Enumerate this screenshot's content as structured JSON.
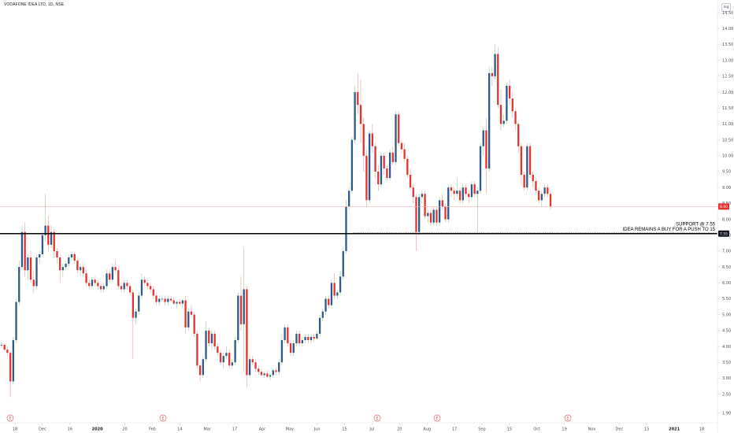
{
  "header": {
    "title": "VODAFONE IDEA LTD, 1D, NSE"
  },
  "log_button": "log",
  "colors": {
    "up": "#2a5b8a",
    "down": "#e5322d",
    "support": "#000000",
    "last_price_line": "#f0b0b0",
    "last_price_tag": "#e5322d",
    "event_marker": "#e06666",
    "axis_text": "#4a4e58"
  },
  "annotations": [
    {
      "text": "SUPPORT @ 7.55"
    },
    {
      "text": "IDEA REMAINS A BUY FOR A PUSH TO 15"
    }
  ],
  "price_tags": {
    "last": "8.40",
    "support": "7.55"
  },
  "event_marker_label": "E",
  "chart_data": {
    "type": "candlestick",
    "title": "VODAFONE IDEA LTD, 1D, NSE",
    "y_axis_ticks": [
      "1.90",
      "2.50",
      "3.00",
      "3.50",
      "4.00",
      "4.50",
      "5.00",
      "5.50",
      "6.00",
      "6.50",
      "7.00",
      "7.50",
      "8.00",
      "8.50",
      "9.00",
      "9.50",
      "10.00",
      "10.50",
      "11.00",
      "11.50",
      "12.00",
      "12.50",
      "13.00",
      "13.50",
      "14.00",
      "14.50"
    ],
    "x_axis_ticks": [
      "18",
      "Dec",
      "16",
      "2020",
      "20",
      "Feb",
      "14",
      "Mar",
      "17",
      "Apr",
      "May",
      "Jun",
      "15",
      "Jul",
      "20",
      "Aug",
      "17",
      "Sep",
      "15",
      "Oct",
      "19",
      "Nov",
      "Dec",
      "15",
      "2021",
      "18"
    ],
    "ylim": [
      1.6,
      14.8
    ],
    "support_level": 7.55,
    "last_price": 8.4,
    "event_markers": [
      "Nov",
      "Feb",
      "Jul",
      "Aug",
      "Nov"
    ],
    "series": [
      {
        "name": "",
        "points": [
          [
            4.05,
            4.15,
            3.95,
            4.05
          ],
          [
            4.05,
            4.1,
            3.85,
            3.9
          ],
          [
            3.9,
            4.0,
            3.7,
            3.8
          ],
          [
            3.8,
            3.85,
            2.4,
            2.9
          ],
          [
            2.9,
            4.3,
            2.8,
            4.2
          ],
          [
            4.2,
            5.5,
            4.1,
            5.4
          ],
          [
            5.4,
            6.7,
            5.3,
            6.5
          ],
          [
            6.5,
            7.8,
            6.4,
            7.6
          ],
          [
            7.6,
            7.9,
            6.2,
            6.4
          ],
          [
            6.4,
            6.9,
            6.1,
            6.8
          ],
          [
            6.8,
            7.0,
            6.0,
            6.1
          ],
          [
            6.1,
            6.4,
            5.7,
            5.9
          ],
          [
            5.9,
            6.9,
            5.8,
            6.8
          ],
          [
            6.8,
            7.0,
            6.6,
            6.9
          ],
          [
            6.9,
            7.6,
            6.8,
            7.5
          ],
          [
            7.5,
            8.8,
            7.3,
            7.8
          ],
          [
            7.8,
            8.1,
            7.0,
            7.2
          ],
          [
            7.2,
            7.8,
            7.1,
            7.6
          ],
          [
            7.6,
            7.7,
            6.8,
            7.0
          ],
          [
            7.0,
            7.1,
            6.6,
            6.8
          ],
          [
            6.8,
            6.9,
            6.0,
            6.4
          ],
          [
            6.4,
            6.6,
            6.2,
            6.5
          ],
          [
            6.5,
            6.7,
            6.4,
            6.6
          ],
          [
            6.6,
            6.9,
            6.5,
            6.8
          ],
          [
            6.8,
            7.0,
            6.7,
            6.9
          ],
          [
            6.9,
            7.0,
            6.6,
            6.7
          ],
          [
            6.7,
            6.8,
            6.3,
            6.4
          ],
          [
            6.4,
            6.6,
            6.2,
            6.5
          ],
          [
            6.5,
            6.6,
            6.2,
            6.3
          ],
          [
            6.3,
            6.4,
            5.9,
            6.0
          ],
          [
            6.0,
            6.1,
            5.8,
            5.9
          ],
          [
            5.9,
            6.2,
            5.8,
            6.1
          ],
          [
            6.1,
            6.2,
            5.9,
            6.0
          ],
          [
            6.0,
            6.1,
            5.8,
            5.9
          ],
          [
            5.9,
            6.0,
            5.7,
            5.8
          ],
          [
            5.8,
            6.0,
            5.7,
            5.9
          ],
          [
            5.9,
            6.4,
            5.8,
            6.3
          ],
          [
            6.3,
            6.4,
            6.0,
            6.1
          ],
          [
            6.1,
            6.6,
            6.0,
            6.5
          ],
          [
            6.5,
            6.7,
            6.3,
            6.4
          ],
          [
            6.4,
            6.5,
            5.8,
            5.9
          ],
          [
            5.9,
            6.0,
            5.7,
            5.8
          ],
          [
            5.8,
            6.1,
            5.7,
            6.0
          ],
          [
            6.0,
            6.1,
            5.8,
            5.9
          ],
          [
            5.9,
            6.0,
            5.6,
            5.7
          ],
          [
            5.7,
            5.8,
            3.6,
            4.9
          ],
          [
            4.9,
            5.2,
            4.7,
            5.1
          ],
          [
            5.1,
            5.7,
            5.0,
            5.6
          ],
          [
            5.6,
            6.3,
            5.5,
            6.1
          ],
          [
            6.1,
            6.2,
            5.9,
            6.0
          ],
          [
            6.0,
            6.1,
            5.8,
            5.9
          ],
          [
            5.9,
            6.0,
            5.7,
            5.8
          ],
          [
            5.8,
            5.9,
            5.5,
            5.6
          ],
          [
            5.6,
            5.7,
            5.3,
            5.4
          ],
          [
            5.4,
            5.6,
            5.3,
            5.5
          ],
          [
            5.5,
            5.6,
            5.4,
            5.5
          ],
          [
            5.5,
            5.6,
            5.3,
            5.4
          ],
          [
            5.4,
            5.6,
            5.3,
            5.5
          ],
          [
            5.5,
            5.6,
            5.4,
            5.45
          ],
          [
            5.45,
            5.55,
            5.3,
            5.35
          ],
          [
            5.35,
            5.45,
            5.2,
            5.4
          ],
          [
            5.4,
            5.5,
            5.3,
            5.35
          ],
          [
            5.35,
            5.5,
            5.2,
            5.45
          ],
          [
            5.45,
            5.6,
            4.4,
            4.6
          ],
          [
            4.6,
            5.2,
            4.5,
            5.1
          ],
          [
            5.1,
            5.3,
            4.9,
            5.0
          ],
          [
            5.0,
            5.1,
            4.3,
            4.4
          ],
          [
            4.4,
            4.5,
            3.3,
            3.4
          ],
          [
            3.4,
            3.5,
            2.9,
            3.1
          ],
          [
            3.1,
            3.7,
            3.0,
            3.6
          ],
          [
            3.6,
            4.8,
            3.5,
            4.5
          ],
          [
            4.5,
            4.6,
            4.0,
            4.1
          ],
          [
            4.1,
            4.5,
            3.9,
            4.4
          ],
          [
            4.4,
            4.5,
            3.9,
            4.0
          ],
          [
            4.0,
            4.1,
            3.7,
            3.8
          ],
          [
            3.8,
            3.9,
            3.4,
            3.5
          ],
          [
            3.5,
            3.8,
            3.3,
            3.7
          ],
          [
            3.7,
            4.0,
            3.6,
            3.8
          ],
          [
            3.8,
            3.9,
            3.3,
            3.4
          ],
          [
            3.4,
            3.6,
            3.3,
            3.5
          ],
          [
            3.5,
            4.3,
            3.4,
            4.2
          ],
          [
            4.2,
            5.7,
            4.1,
            5.6
          ],
          [
            5.6,
            6.2,
            4.5,
            4.7
          ],
          [
            4.7,
            7.1,
            3.2,
            5.8
          ],
          [
            5.8,
            5.9,
            2.7,
            3.1
          ],
          [
            3.1,
            3.7,
            3.0,
            3.6
          ],
          [
            3.6,
            3.7,
            3.4,
            3.5
          ],
          [
            3.5,
            3.6,
            3.2,
            3.3
          ],
          [
            3.3,
            3.4,
            3.1,
            3.2
          ],
          [
            3.2,
            3.3,
            3.05,
            3.1
          ],
          [
            3.1,
            3.2,
            3.0,
            3.15
          ],
          [
            3.15,
            3.25,
            3.0,
            3.05
          ],
          [
            3.05,
            3.15,
            2.95,
            3.1
          ],
          [
            3.1,
            3.3,
            3.0,
            3.25
          ],
          [
            3.25,
            3.35,
            3.1,
            3.2
          ],
          [
            3.2,
            3.6,
            3.1,
            3.5
          ],
          [
            3.5,
            4.4,
            3.4,
            4.2
          ],
          [
            4.2,
            4.7,
            4.1,
            4.6
          ],
          [
            4.6,
            4.7,
            4.0,
            4.1
          ],
          [
            4.1,
            4.2,
            3.7,
            3.8
          ],
          [
            3.8,
            4.2,
            3.7,
            4.1
          ],
          [
            4.1,
            4.5,
            4.0,
            4.4
          ],
          [
            4.4,
            4.5,
            4.0,
            4.1
          ],
          [
            4.1,
            4.3,
            4.0,
            4.2
          ],
          [
            4.2,
            4.4,
            4.1,
            4.3
          ],
          [
            4.3,
            4.4,
            4.1,
            4.2
          ],
          [
            4.2,
            4.4,
            4.1,
            4.3
          ],
          [
            4.3,
            4.4,
            4.15,
            4.25
          ],
          [
            4.25,
            4.5,
            4.2,
            4.4
          ],
          [
            4.4,
            5.0,
            4.3,
            4.9
          ],
          [
            4.9,
            5.2,
            4.8,
            5.1
          ],
          [
            5.1,
            5.6,
            5.0,
            5.5
          ],
          [
            5.5,
            5.6,
            5.2,
            5.3
          ],
          [
            5.3,
            6.1,
            5.2,
            6.0
          ],
          [
            6.0,
            6.3,
            5.5,
            5.6
          ],
          [
            5.6,
            5.8,
            5.5,
            5.7
          ],
          [
            5.7,
            6.4,
            5.6,
            6.2
          ],
          [
            6.2,
            7.1,
            6.1,
            7.0
          ],
          [
            7.0,
            8.6,
            6.9,
            8.4
          ],
          [
            8.4,
            9.0,
            8.3,
            8.9
          ],
          [
            8.9,
            10.6,
            8.8,
            10.5
          ],
          [
            10.5,
            12.2,
            10.4,
            12.0
          ],
          [
            12.0,
            12.6,
            11.3,
            11.6
          ],
          [
            11.6,
            12.4,
            10.4,
            11.0
          ],
          [
            11.0,
            11.2,
            9.5,
            10.0
          ],
          [
            10.0,
            10.2,
            8.4,
            8.6
          ],
          [
            8.6,
            10.8,
            8.5,
            10.7
          ],
          [
            10.7,
            11.0,
            10.1,
            10.3
          ],
          [
            10.3,
            10.4,
            9.3,
            9.5
          ],
          [
            9.5,
            9.7,
            8.9,
            9.1
          ],
          [
            9.1,
            10.1,
            9.0,
            10.0
          ],
          [
            10.0,
            10.1,
            9.4,
            9.6
          ],
          [
            9.6,
            9.7,
            9.2,
            9.3
          ],
          [
            9.3,
            10.2,
            9.2,
            10.1
          ],
          [
            10.1,
            10.3,
            9.7,
            9.8
          ],
          [
            9.8,
            11.4,
            9.7,
            11.3
          ],
          [
            11.3,
            11.4,
            10.3,
            10.4
          ],
          [
            10.4,
            10.5,
            10.1,
            10.2
          ],
          [
            10.2,
            10.4,
            9.8,
            9.9
          ],
          [
            9.9,
            10.0,
            9.3,
            9.4
          ],
          [
            9.4,
            9.6,
            8.9,
            9.0
          ],
          [
            9.0,
            9.1,
            8.5,
            8.7
          ],
          [
            8.7,
            8.8,
            7.0,
            7.6
          ],
          [
            7.6,
            8.8,
            7.5,
            8.7
          ],
          [
            8.7,
            8.9,
            8.5,
            8.8
          ],
          [
            8.8,
            8.9,
            8.0,
            8.1
          ],
          [
            8.1,
            8.3,
            7.9,
            8.2
          ],
          [
            8.2,
            8.3,
            7.8,
            7.9
          ],
          [
            7.9,
            8.4,
            7.8,
            8.3
          ],
          [
            8.3,
            8.4,
            7.8,
            7.9
          ],
          [
            7.9,
            8.7,
            7.8,
            8.6
          ],
          [
            8.6,
            8.8,
            8.3,
            8.4
          ],
          [
            8.4,
            8.5,
            7.9,
            8.0
          ],
          [
            8.0,
            9.1,
            7.9,
            9.0
          ],
          [
            9.0,
            9.1,
            8.7,
            8.9
          ],
          [
            8.9,
            9.0,
            8.6,
            8.8
          ],
          [
            8.8,
            9.3,
            8.7,
            8.9
          ],
          [
            8.9,
            9.0,
            8.5,
            8.6
          ],
          [
            8.6,
            9.1,
            8.5,
            9.0
          ],
          [
            9.0,
            9.1,
            8.7,
            8.8
          ],
          [
            8.8,
            8.9,
            8.5,
            8.7
          ],
          [
            8.7,
            9.2,
            8.6,
            9.1
          ],
          [
            9.1,
            9.2,
            8.7,
            8.8
          ],
          [
            8.8,
            9.0,
            7.6,
            8.9
          ],
          [
            8.9,
            10.4,
            8.8,
            10.3
          ],
          [
            10.3,
            10.9,
            10.0,
            10.8
          ],
          [
            10.8,
            11.2,
            8.8,
            9.6
          ],
          [
            9.6,
            12.8,
            9.5,
            12.6
          ],
          [
            12.6,
            12.8,
            12.2,
            12.5
          ],
          [
            12.5,
            13.5,
            12.4,
            13.2
          ],
          [
            13.2,
            13.4,
            11.5,
            11.6
          ],
          [
            11.6,
            12.1,
            10.8,
            11.0
          ],
          [
            11.0,
            11.3,
            10.9,
            11.1
          ],
          [
            11.1,
            12.3,
            11.0,
            12.2
          ],
          [
            12.2,
            12.4,
            11.6,
            11.8
          ],
          [
            11.8,
            12.0,
            11.2,
            11.4
          ],
          [
            11.4,
            11.5,
            10.8,
            11.0
          ],
          [
            11.0,
            11.1,
            10.1,
            10.3
          ],
          [
            10.3,
            10.4,
            9.1,
            9.4
          ],
          [
            9.4,
            9.5,
            8.9,
            9.0
          ],
          [
            9.0,
            10.4,
            8.9,
            10.3
          ],
          [
            10.3,
            10.4,
            9.3,
            9.4
          ],
          [
            9.4,
            9.5,
            9.0,
            9.2
          ],
          [
            9.2,
            9.3,
            8.8,
            8.9
          ],
          [
            8.9,
            9.0,
            8.5,
            8.6
          ],
          [
            8.6,
            8.9,
            8.4,
            8.8
          ],
          [
            8.8,
            9.1,
            8.7,
            9.0
          ],
          [
            9.0,
            9.1,
            8.7,
            8.8
          ],
          [
            8.8,
            8.9,
            8.3,
            8.4
          ]
        ]
      }
    ]
  }
}
